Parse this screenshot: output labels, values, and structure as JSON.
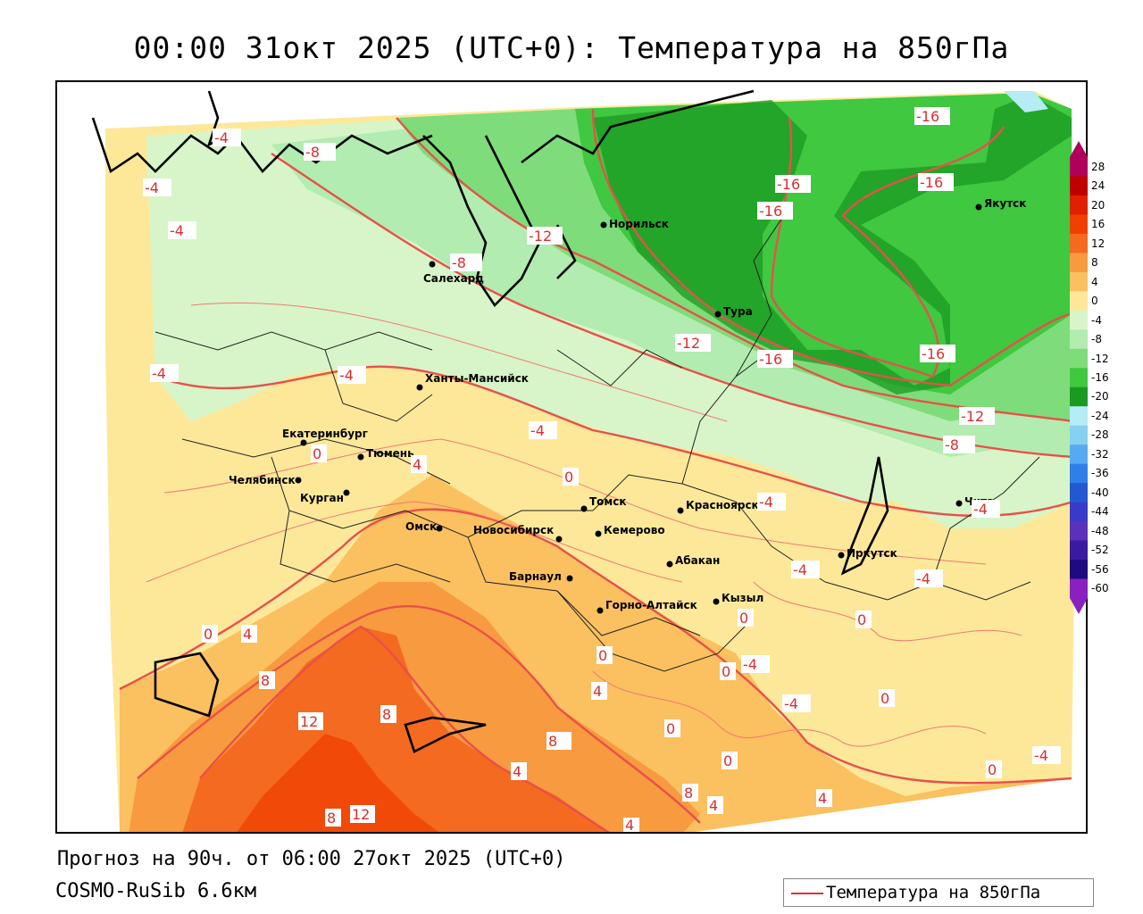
{
  "title": "00:00 31окт 2025 (UTC+0): Температура на 850гПа",
  "footer": {
    "forecast": "Прогноз на 90ч. от 06:00 27окт 2025 (UTC+0)",
    "model": "COSMO-RuSib 6.6км"
  },
  "legend": {
    "label": "Температура на 850гПа",
    "color": "#e03030"
  },
  "colorbar": {
    "ticks": [
      "28",
      "24",
      "20",
      "16",
      "12",
      "8",
      "4",
      "0",
      "-4",
      "-8",
      "-12",
      "-16",
      "-20",
      "-24",
      "-28",
      "-32",
      "-36",
      "-40",
      "-44",
      "-48",
      "-52",
      "-56",
      "-60"
    ],
    "colors": [
      "#b0005a",
      "#c00000",
      "#e02000",
      "#f04000",
      "#f46a20",
      "#f89a40",
      "#fbc060",
      "#fde89a",
      "#d7f5c8",
      "#b2ecb0",
      "#7fdc7a",
      "#3fc840",
      "#1a9a20",
      "#b6ecf6",
      "#86d0f0",
      "#58aaf0",
      "#2e80e8",
      "#2458d0",
      "#3a3ac8",
      "#5a32b8",
      "#3a1aa0",
      "#200a80",
      "#8a20c0"
    ]
  },
  "cities": [
    {
      "name": "Норильск"
    },
    {
      "name": "Якутск"
    },
    {
      "name": "Салехард"
    },
    {
      "name": "Тура"
    },
    {
      "name": "Ханты-Мансийск"
    },
    {
      "name": "Екатеринбург"
    },
    {
      "name": "Тюмень"
    },
    {
      "name": "Челябинск"
    },
    {
      "name": "Курган"
    },
    {
      "name": "Омск"
    },
    {
      "name": "Новосибирск"
    },
    {
      "name": "Томск"
    },
    {
      "name": "Кемерово"
    },
    {
      "name": "Красноярск"
    },
    {
      "name": "Барнаул"
    },
    {
      "name": "Абакан"
    },
    {
      "name": "Горно-Алтайск"
    },
    {
      "name": "Кызыл"
    },
    {
      "name": "Иркутск"
    },
    {
      "name": "Чита"
    }
  ],
  "isotherm_labels": [
    "-16",
    "-16",
    "-16",
    "-16",
    "-16",
    "-16",
    "-12",
    "-12",
    "-12",
    "-8",
    "-8",
    "-8",
    "-4",
    "-4",
    "-4",
    "-4",
    "-4",
    "-4",
    "-4",
    "-4",
    "-4",
    "-4",
    "-4",
    "-4",
    "-4",
    "0",
    "0",
    "0",
    "0",
    "0",
    "0",
    "0",
    "0",
    "0",
    "0",
    "0",
    "4",
    "4",
    "4",
    "4",
    "4",
    "4",
    "8",
    "8",
    "8",
    "8",
    "8",
    "12",
    "12",
    "4"
  ]
}
